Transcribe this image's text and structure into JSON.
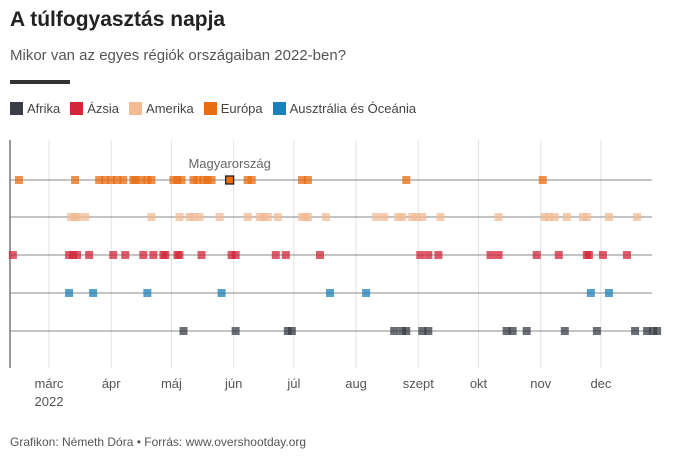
{
  "title": "A túlfogyasztás napja",
  "subtitle": "Mikor van az egyes régiók országaiban 2022-ben?",
  "footer": "Grafikon: Németh Dóra • Forrás: www.overshootday.org",
  "chart_data": {
    "type": "scatter",
    "year": 2022,
    "x_ticks": [
      "márc",
      "ápr",
      "máj",
      "jún",
      "júl",
      "aug",
      "szept",
      "okt",
      "nov",
      "dec"
    ],
    "x_year_label": "2022",
    "annotation": {
      "label": "Magyarország",
      "series": "Európa",
      "date": "2022-05-30"
    },
    "legend_position": "top",
    "series": [
      {
        "name": "Afrika",
        "color": "#3a3d45",
        "dates": [
          "05-07",
          "06-02",
          "06-28",
          "06-30",
          "08-20",
          "08-24",
          "08-26",
          "09-03",
          "09-06",
          "10-15",
          "10-18",
          "10-25",
          "11-13",
          "11-29",
          "12-18",
          "12-24",
          "12-27",
          "12-29"
        ]
      },
      {
        "name": "Ázsia",
        "color": "#d2263a",
        "dates": [
          "02-11",
          "03-11",
          "03-13",
          "03-15",
          "03-21",
          "04-02",
          "04-08",
          "04-17",
          "04-22",
          "04-27",
          "04-28",
          "05-04",
          "05-05",
          "05-16",
          "05-31",
          "06-02",
          "06-22",
          "06-27",
          "07-14",
          "09-02",
          "09-06",
          "09-11",
          "10-07",
          "10-11",
          "10-30",
          "11-10",
          "11-24",
          "11-25",
          "12-02",
          "12-14"
        ]
      },
      {
        "name": "Amerika",
        "color": "#f2bb94",
        "dates": [
          "03-12",
          "03-14",
          "03-15",
          "03-19",
          "04-21",
          "05-05",
          "05-10",
          "05-12",
          "05-15",
          "05-25",
          "06-08",
          "06-14",
          "06-16",
          "06-18",
          "06-23",
          "07-05",
          "07-07",
          "07-08",
          "07-17",
          "08-11",
          "08-15",
          "08-22",
          "08-24",
          "08-29",
          "08-31",
          "09-03",
          "09-12",
          "10-11",
          "11-03",
          "11-05",
          "11-08",
          "11-14",
          "11-22",
          "11-24",
          "12-05",
          "12-19"
        ]
      },
      {
        "name": "Európa",
        "color": "#e86c12",
        "dates": [
          "02-14",
          "03-14",
          "03-26",
          "03-29",
          "04-01",
          "04-04",
          "04-07",
          "04-12",
          "04-13",
          "04-16",
          "04-19",
          "04-21",
          "05-02",
          "05-04",
          "05-06",
          "05-12",
          "05-14",
          "05-17",
          "05-19",
          "05-21",
          "05-30",
          "06-08",
          "06-10",
          "07-05",
          "07-08",
          "08-26",
          "11-02"
        ]
      },
      {
        "name": "Ausztrália és Óceánia",
        "color": "#1c81b8",
        "dates": [
          "03-11",
          "03-23",
          "04-19",
          "05-26",
          "07-19",
          "08-06",
          "11-26",
          "12-05"
        ]
      }
    ]
  }
}
